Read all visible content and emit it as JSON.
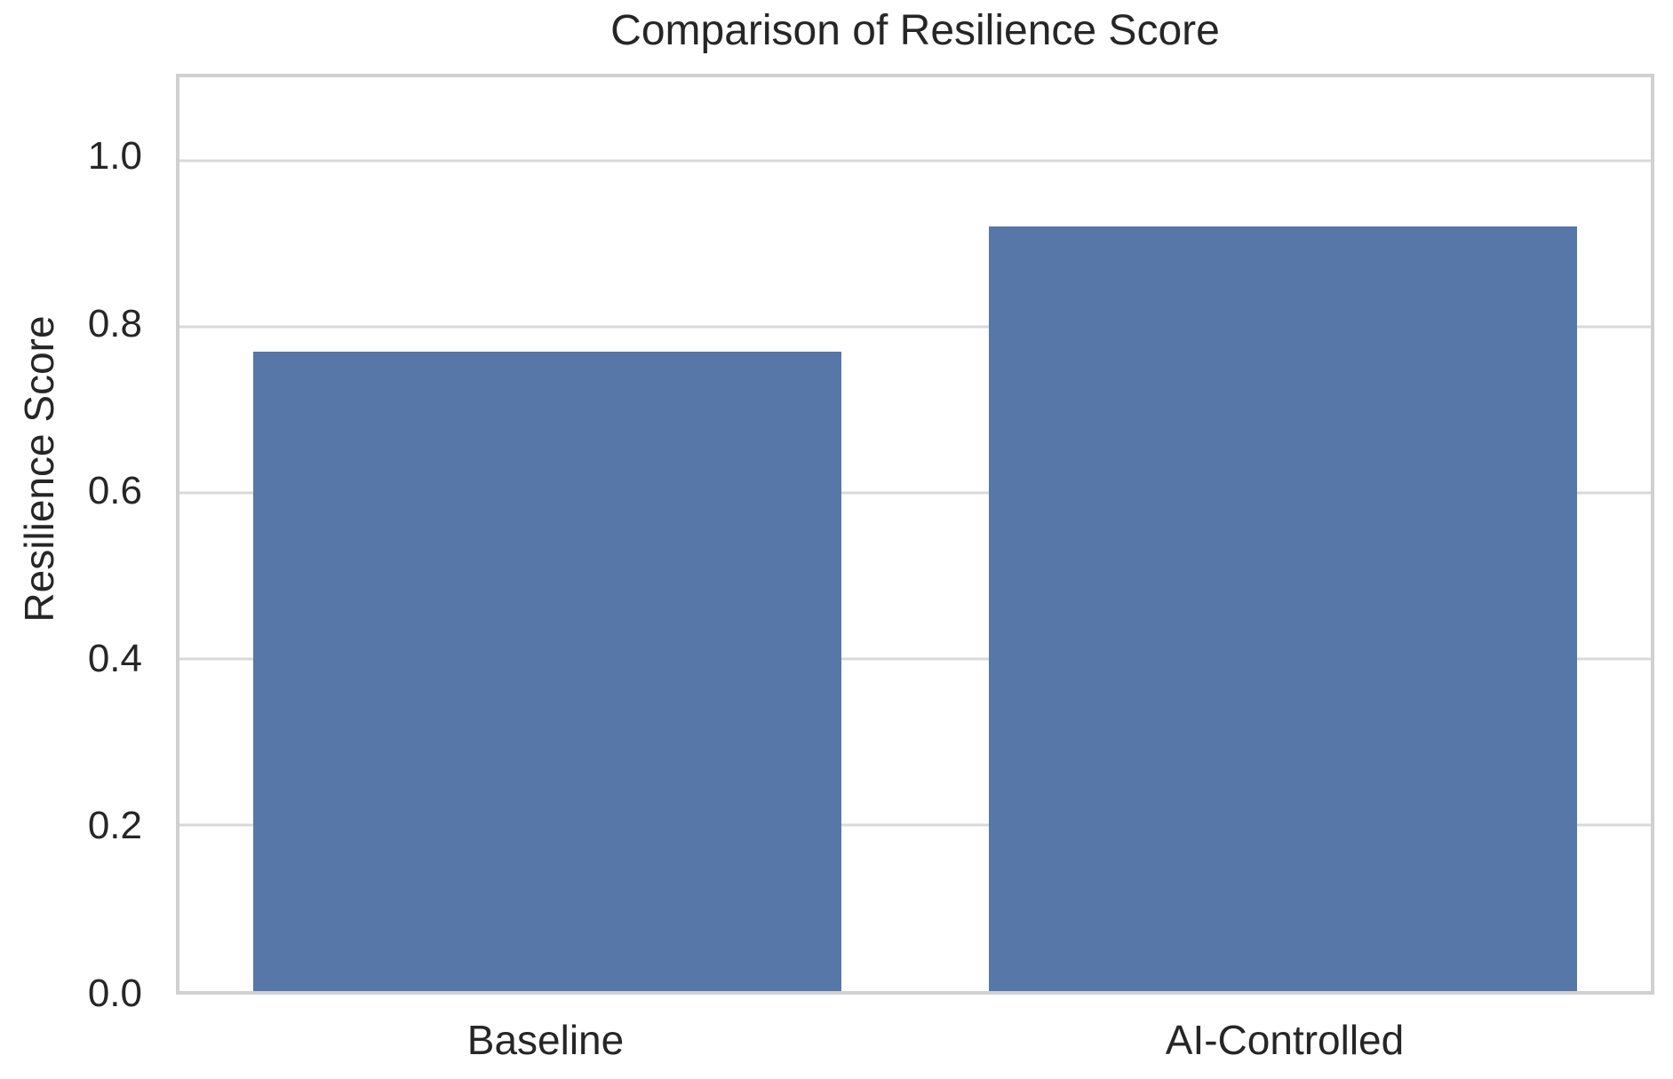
{
  "chart_data": {
    "type": "bar",
    "title": "Comparison of Resilience Score",
    "categories": [
      "Baseline",
      "AI-Controlled"
    ],
    "values": [
      0.77,
      0.92
    ],
    "xlabel": "",
    "ylabel": "Resilience Score",
    "ylim": [
      0,
      1.1
    ],
    "yticks": [
      0.0,
      0.2,
      0.4,
      0.6,
      0.8,
      1.0
    ],
    "ytick_labels": [
      "0.0",
      "0.2",
      "0.4",
      "0.6",
      "0.8",
      "1.0"
    ],
    "grid": true,
    "legend": false,
    "bar_width_fraction": 0.4,
    "colors": {
      "bar": "#5777a9",
      "grid": "#d9d9d9",
      "spine": "#d0d0d0",
      "text": "#262626",
      "background": "#ffffff"
    }
  }
}
